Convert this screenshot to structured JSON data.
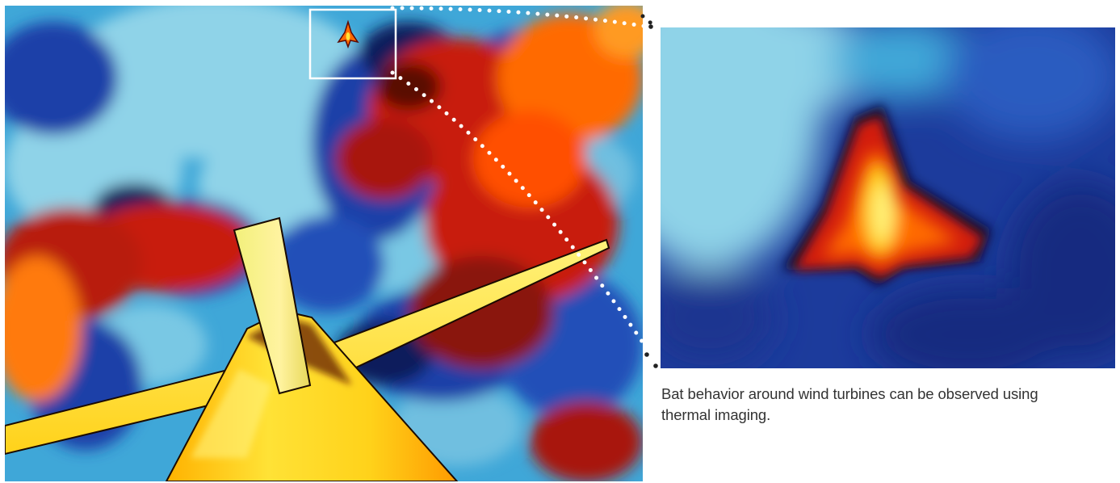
{
  "figure": {
    "caption": "Bat behavior around wind turbines can be observed using thermal imaging."
  },
  "palette": {
    "sky_cold": "#8fd3e8",
    "sky_mid": "#3fa7d8",
    "cool_blue": "#1d3fa8",
    "deep_blue": "#0b1a5c",
    "cloud_red": "#c81e10",
    "cloud_dark": "#5a0a06",
    "warm_orange": "#ff6a00",
    "hot_yellow": "#ffe236",
    "highlight_box": "#ffffff"
  },
  "icons": {
    "bat": "bat-silhouette",
    "turbine": "wind-turbine",
    "zoom": "zoom-callout"
  }
}
